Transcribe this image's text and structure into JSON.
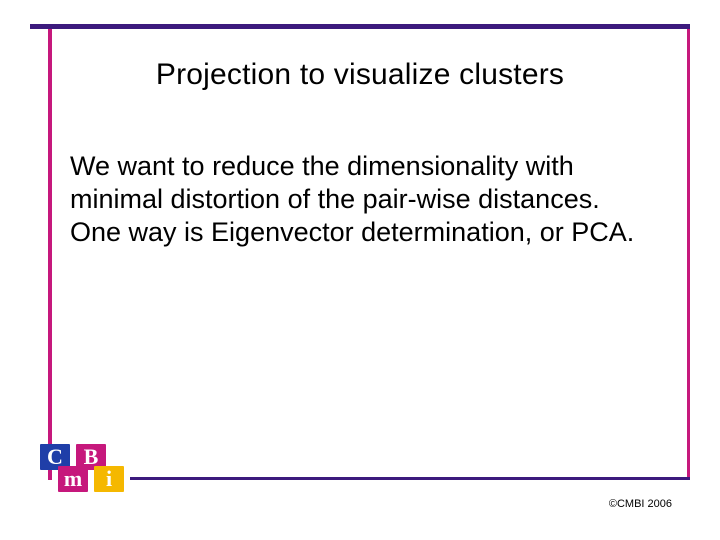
{
  "slide": {
    "title": "Projection to visualize clusters",
    "body": "We want to reduce the dimensionality with minimal distortion of the pair-wise distances. One way is Eigenvector determination, or PCA.",
    "title_color": "#000000",
    "title_fontsize": 30,
    "body_color": "#000000",
    "body_fontsize": 27
  },
  "rules": {
    "top_color": "#3c1a7d",
    "left_color": "#c6187c",
    "right_color": "#c6187c",
    "bottom_color": "#3c1a7d"
  },
  "logo": {
    "tiles": {
      "c": {
        "letter": "C",
        "bg": "#1f3ea8"
      },
      "m": {
        "letter": "m",
        "bg": "#c6187c"
      },
      "b": {
        "letter": "B",
        "bg": "#c6187c"
      },
      "i": {
        "letter": "i",
        "bg": "#f5b800"
      }
    }
  },
  "footer": {
    "copyright": "©CMBI 2006",
    "color": "#000000"
  },
  "background_color": "#ffffff"
}
